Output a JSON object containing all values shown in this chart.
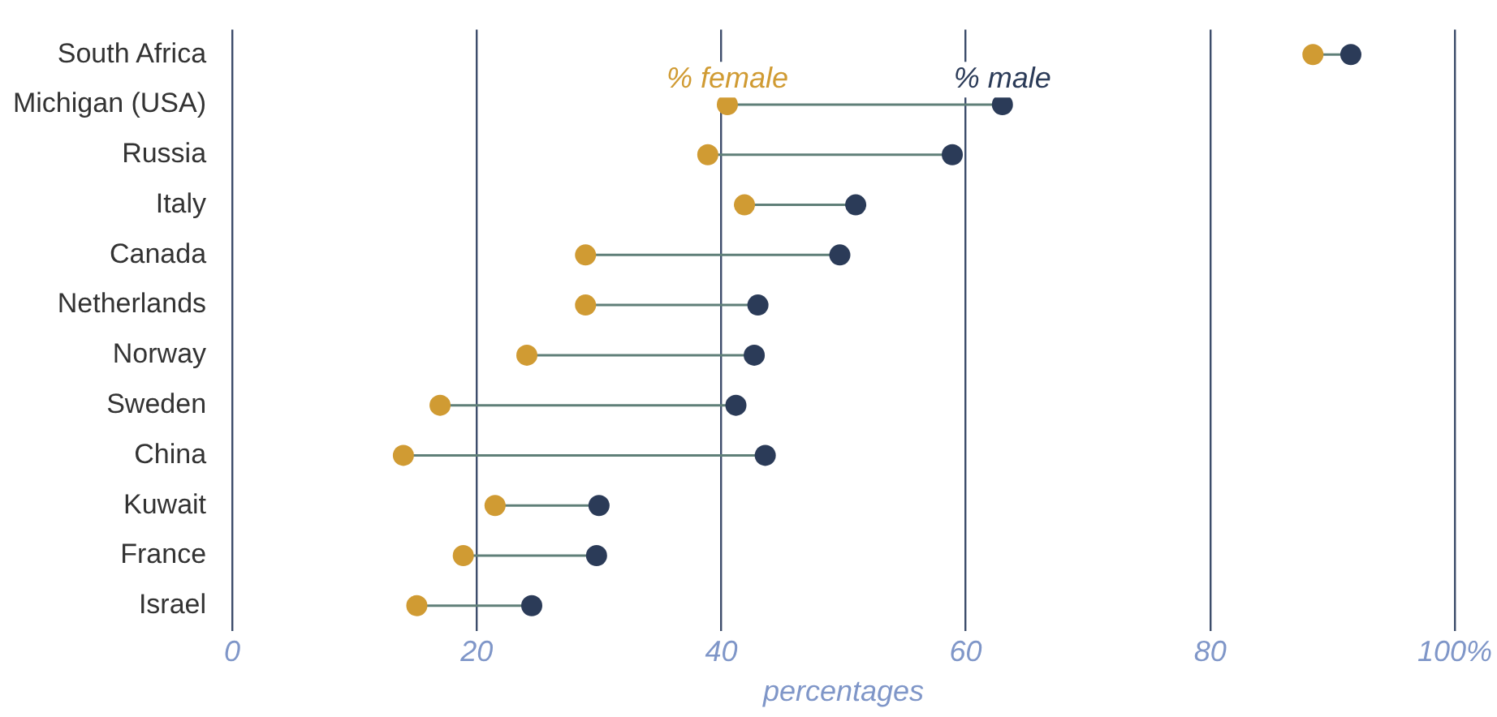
{
  "chart_data": {
    "type": "scatter",
    "orientation": "horizontal",
    "xlabel": "percentages",
    "categories": [
      "South Africa",
      "Michigan (USA)",
      "Russia",
      "Italy",
      "Canada",
      "Netherlands",
      "Norway",
      "Sweden",
      "China",
      "Kuwait",
      "France",
      "Israel"
    ],
    "series": [
      {
        "name": "% female",
        "color": "#d09b33",
        "values": [
          88.4,
          40.5,
          38.9,
          41.9,
          28.9,
          28.9,
          24.1,
          17.0,
          14.0,
          21.5,
          18.9,
          15.1
        ]
      },
      {
        "name": "% male",
        "color": "#2b3b58",
        "values": [
          91.5,
          63.0,
          58.9,
          51.0,
          49.7,
          43.0,
          42.7,
          41.2,
          43.6,
          30.0,
          29.8,
          24.5
        ]
      }
    ],
    "xlim": [
      0,
      100
    ],
    "xticks": [
      0,
      20,
      40,
      60,
      80,
      {
        "value": 100,
        "label": "100%"
      }
    ],
    "grid": "x",
    "legend": false,
    "marker": "circle"
  }
}
